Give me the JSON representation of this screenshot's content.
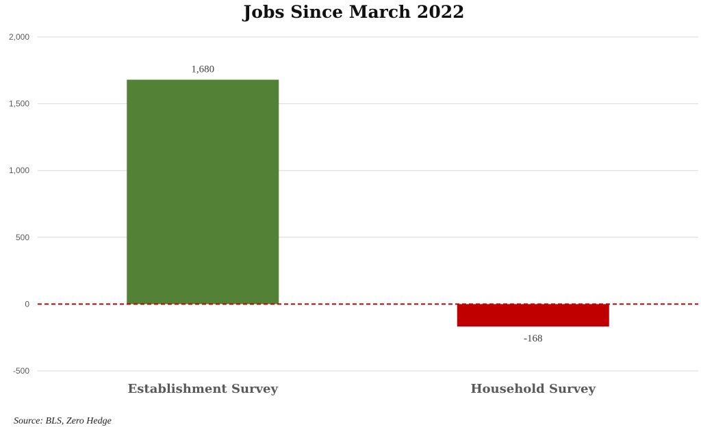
{
  "chart_data": {
    "type": "bar",
    "title": "Jobs Since March 2022",
    "categories": [
      "Establishment Survey",
      "Household Survey"
    ],
    "values": [
      1680,
      -168
    ],
    "value_labels": [
      "1,680",
      "-168"
    ],
    "colors": [
      "#538135",
      "#c00000"
    ],
    "ylim": [
      -500,
      2000
    ],
    "yticks": [
      2000,
      1500,
      1000,
      500,
      0,
      -500
    ],
    "ytick_labels": [
      "2,000",
      "1,500",
      "1,000",
      "500",
      "0",
      "-500"
    ],
    "xlabel": "",
    "ylabel": "",
    "grid": true,
    "legend": "none",
    "zero_line_color": "#c00000"
  },
  "source": "Source: BLS, Zero Hedge"
}
